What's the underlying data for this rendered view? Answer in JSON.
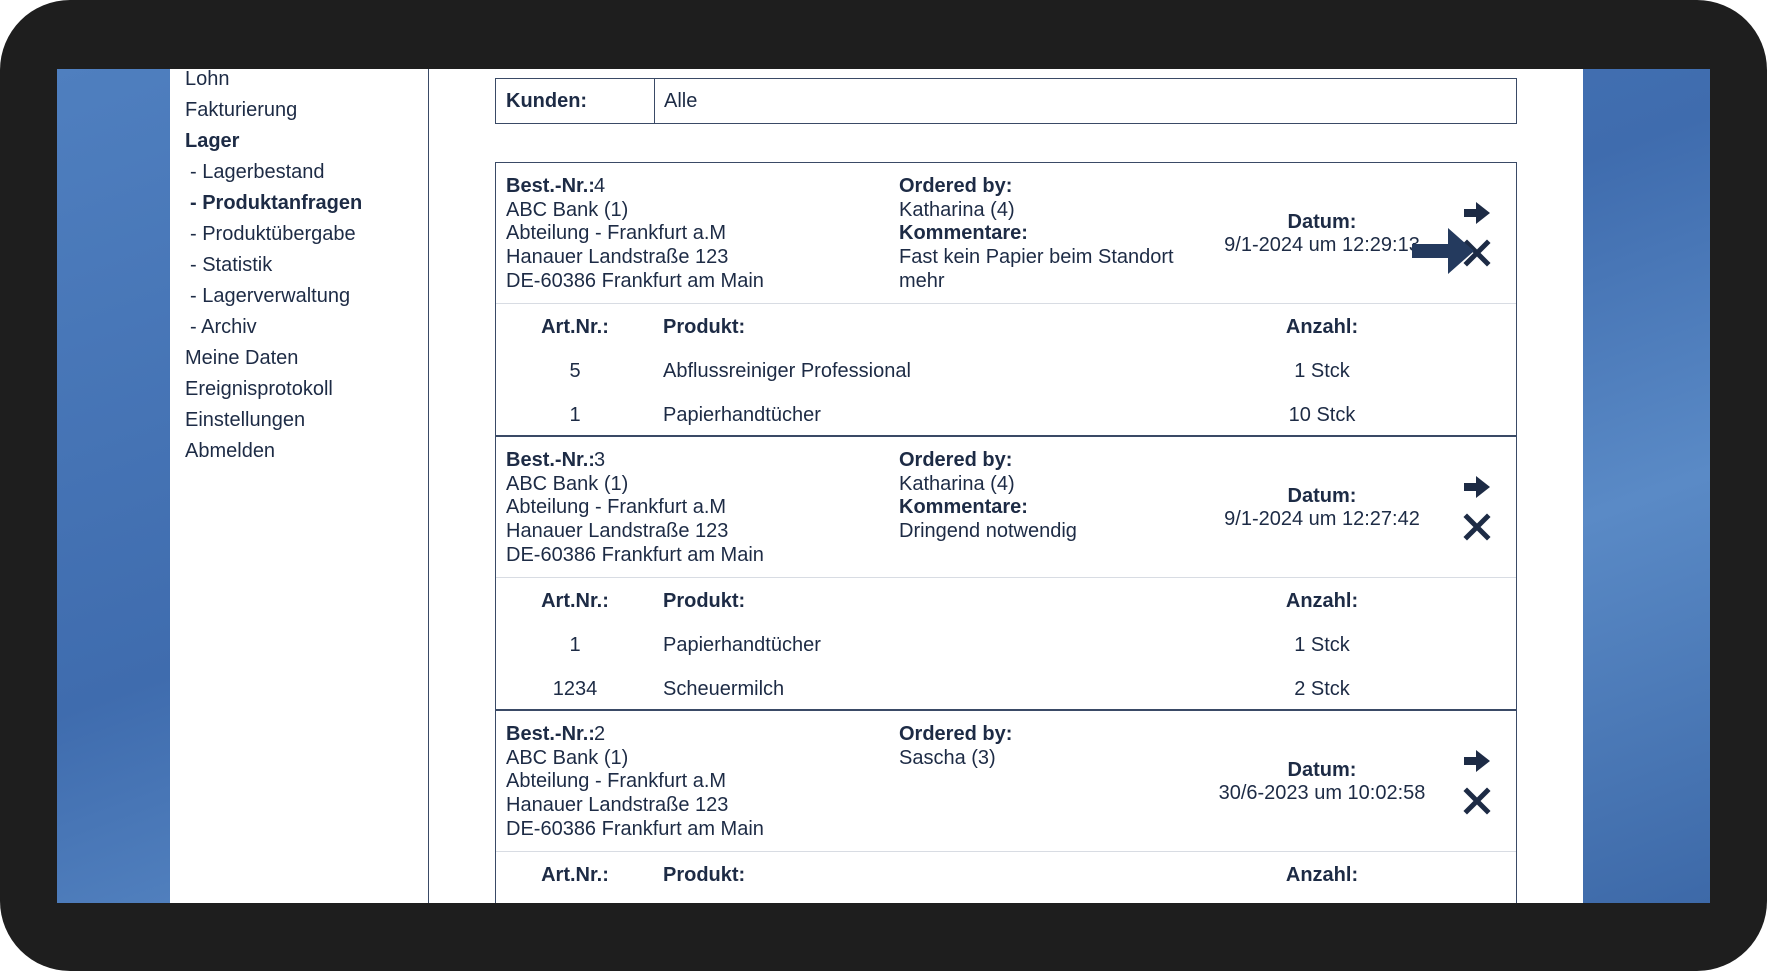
{
  "sidebar": {
    "items": [
      "Lohn",
      "Fakturierung",
      "Lager",
      "- Lagerbestand",
      "- Produktanfragen",
      "- Produktübergabe",
      "- Statistik",
      "- Lagerverwaltung",
      "- Archiv",
      "Meine Daten",
      "Ereignisprotokoll",
      "Einstellungen",
      "Abmelden"
    ]
  },
  "filter": {
    "label": "Kunden:",
    "value": "Alle"
  },
  "labels": {
    "number": "Best.-Nr.:",
    "ordered_by": "Ordered by:",
    "comment": "Kommentare:",
    "date": "Datum:",
    "art": "Art.Nr.:",
    "product": "Produkt:",
    "quantity": "Anzahl:"
  },
  "orders": [
    {
      "number": "4",
      "address": [
        "ABC Bank (1)",
        "Abteilung - Frankfurt a.M",
        "Hanauer Landstraße 123",
        "DE-60386 Frankfurt am Main"
      ],
      "ordered_by": "Katharina (4)",
      "comment": [
        "Fast kein Papier beim Standort",
        "mehr"
      ],
      "date": "9/1-2024 um 12:29:13",
      "items": [
        [
          "5",
          "Abflussreiniger Professional",
          "1 Stck"
        ],
        [
          "1",
          "Papierhandtücher",
          "10 Stck"
        ]
      ]
    },
    {
      "number": "3",
      "address": [
        "ABC Bank (1)",
        "Abteilung - Frankfurt a.M",
        "Hanauer Landstraße 123",
        "DE-60386 Frankfurt am Main"
      ],
      "ordered_by": "Katharina (4)",
      "comment": [
        "Dringend notwendig"
      ],
      "date": "9/1-2024 um 12:27:42",
      "items": [
        [
          "1",
          "Papierhandtücher",
          "1 Stck"
        ],
        [
          "1234",
          "Scheuermilch",
          "2 Stck"
        ]
      ]
    },
    {
      "number": "2",
      "address": [
        "ABC Bank (1)",
        "Abteilung - Frankfurt a.M",
        "Hanauer Landstraße 123",
        "DE-60386 Frankfurt am Main"
      ],
      "ordered_by": "Sascha (3)",
      "date": "30/6-2023 um 10:02:58",
      "items": []
    }
  ]
}
